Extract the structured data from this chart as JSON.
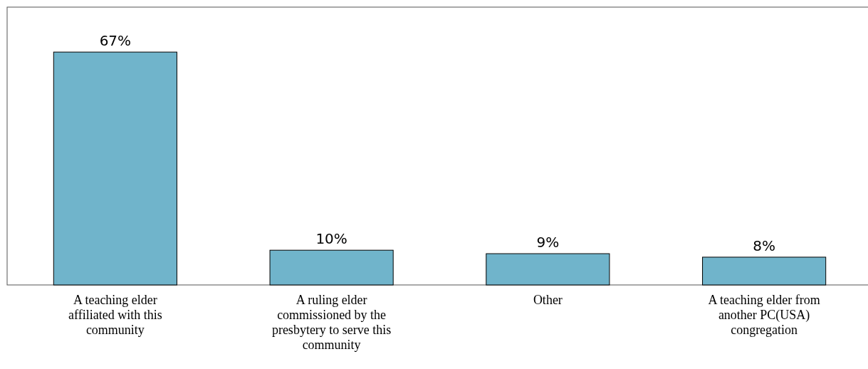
{
  "chart_data": {
    "type": "bar",
    "categories": [
      "A teaching elder affiliated with this community",
      "A ruling elder commissioned by the presbytery to serve this community",
      "Other",
      "A teaching elder from another PC(USA) congregation"
    ],
    "values": [
      67,
      10,
      9,
      8
    ],
    "value_labels": [
      "67%",
      "10%",
      "9%",
      "8%"
    ],
    "color": "#70b4cb"
  }
}
